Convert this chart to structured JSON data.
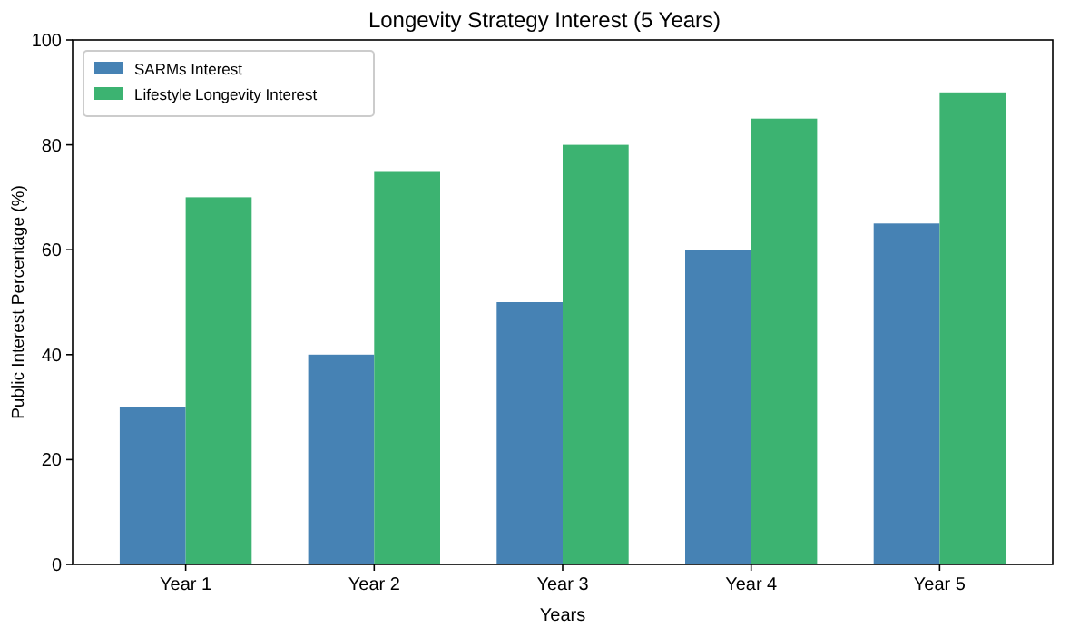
{
  "chart_data": {
    "type": "bar",
    "title": "Longevity Strategy Interest (5 Years)",
    "xlabel": "Years",
    "ylabel": "Public Interest Percentage (%)",
    "categories": [
      "Year 1",
      "Year 2",
      "Year 3",
      "Year 4",
      "Year 5"
    ],
    "series": [
      {
        "name": "SARMs Interest",
        "color": "#4682b4",
        "values": [
          30,
          40,
          50,
          60,
          65
        ]
      },
      {
        "name": "Lifestyle Longevity Interest",
        "color": "#3cb371",
        "values": [
          70,
          75,
          80,
          85,
          90
        ]
      }
    ],
    "ylim": [
      0,
      100
    ],
    "yticks": [
      0,
      20,
      40,
      60,
      80,
      100
    ],
    "legend": "top left",
    "grid": false
  }
}
